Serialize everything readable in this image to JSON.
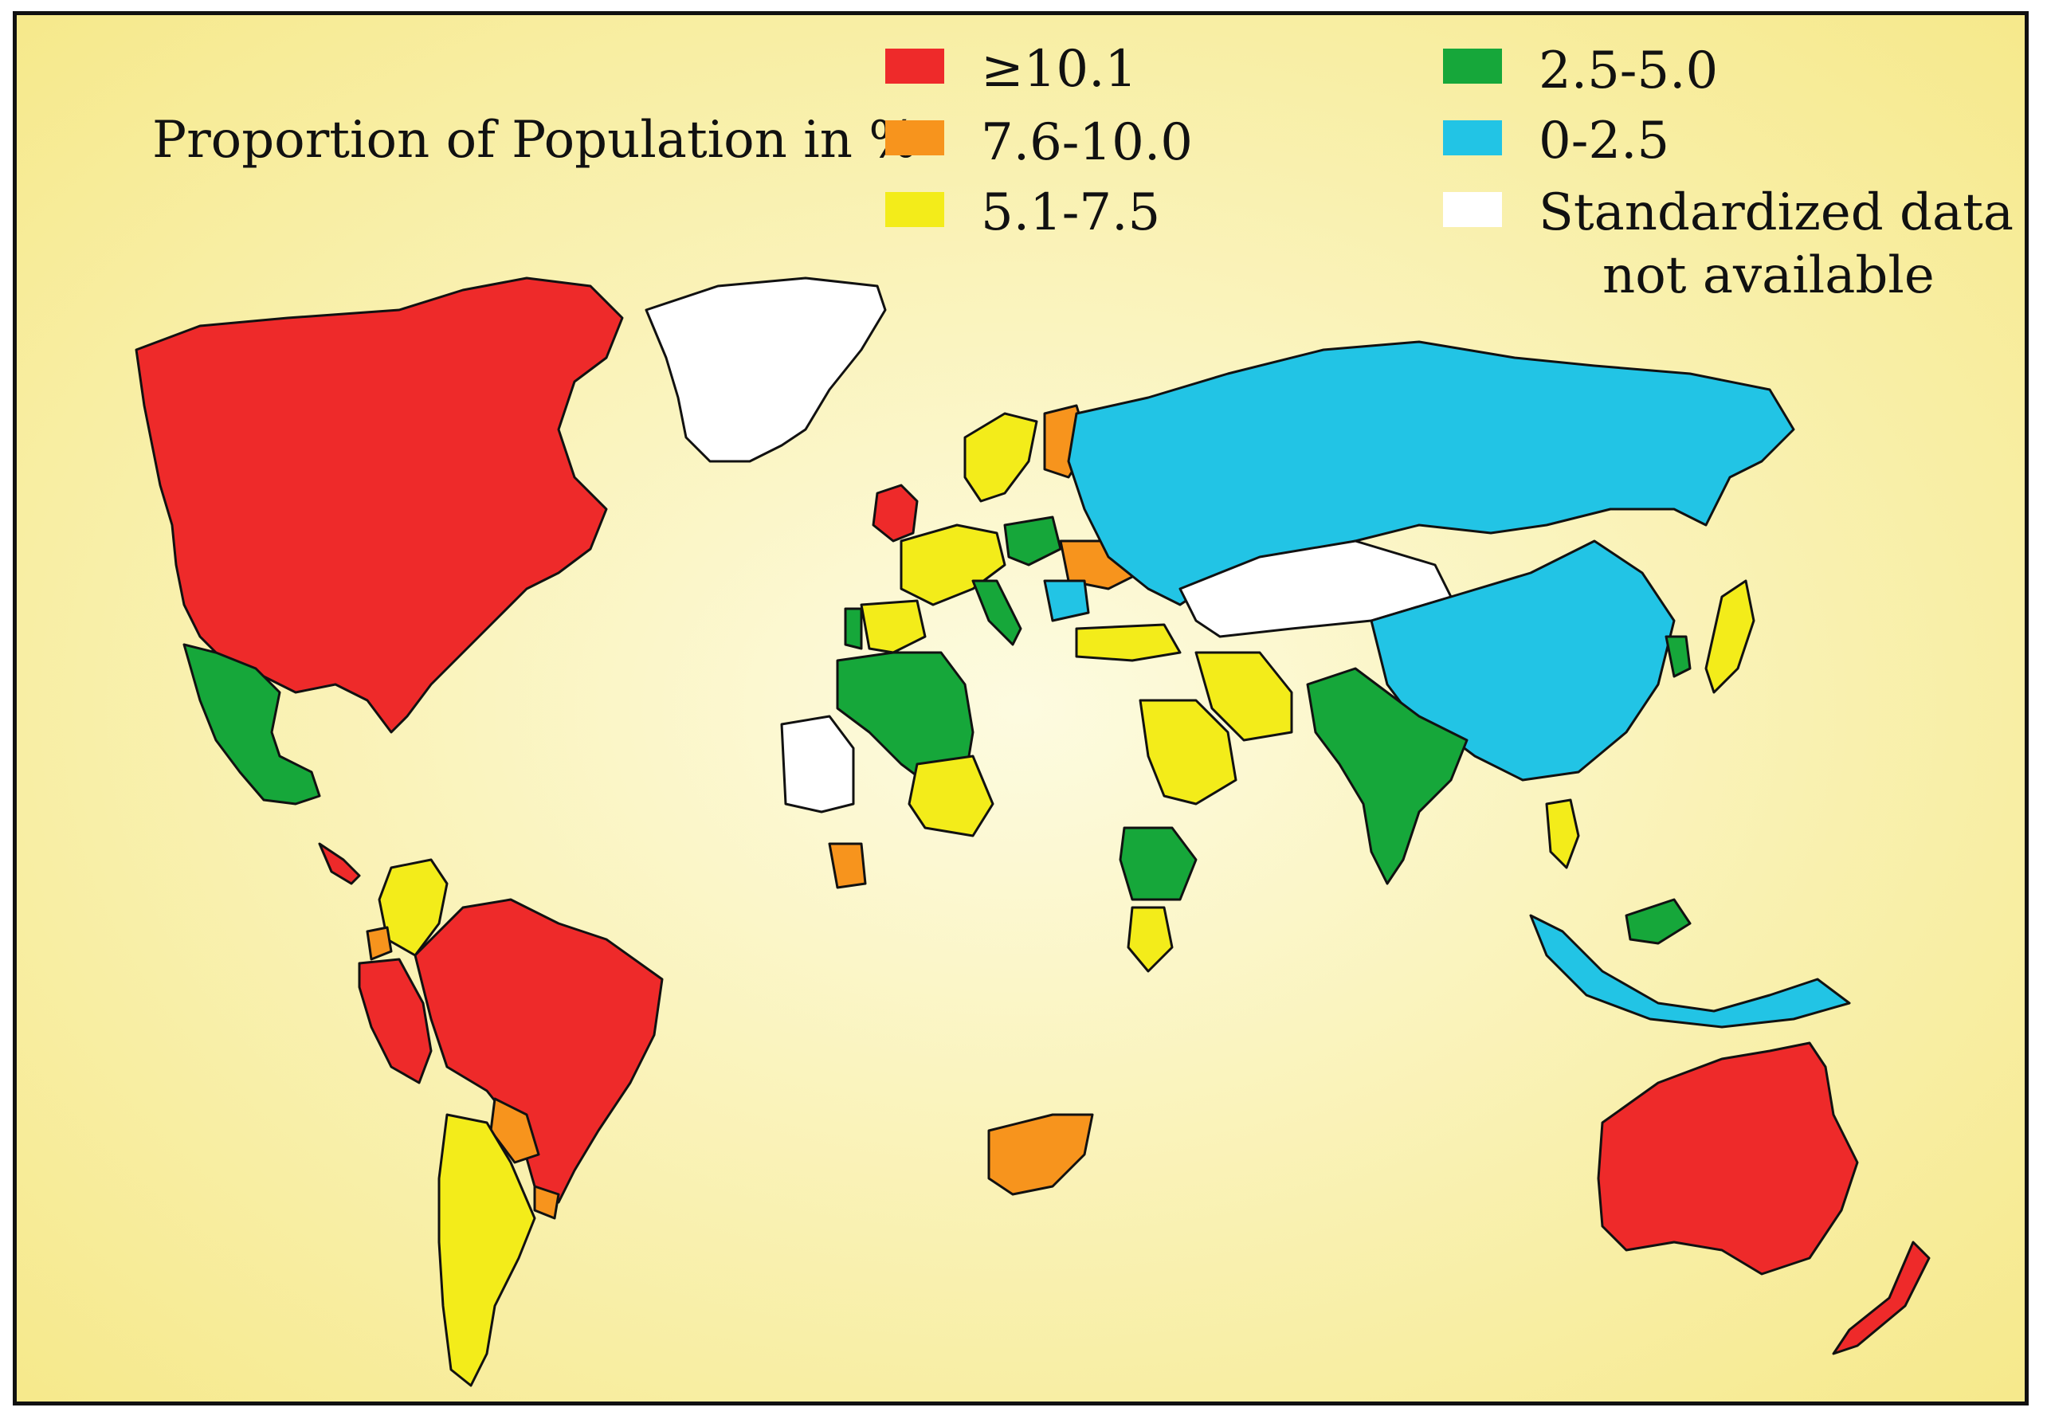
{
  "map": {
    "title": "Proportion of Population in %",
    "legend": [
      {
        "key": "gte10",
        "label": "≥10.1",
        "color": "#ee2a2a"
      },
      {
        "key": "7to10",
        "label": "7.6-10.0",
        "color": "#f7941d"
      },
      {
        "key": "5to7",
        "label": "5.1-7.5",
        "color": "#f3ec1a"
      },
      {
        "key": "2to5",
        "label": "2.5-5.0",
        "color": "#16a73a"
      },
      {
        "key": "0to2",
        "label": "0-2.5",
        "color": "#22c4e5"
      },
      {
        "key": "na",
        "label": "Standardized data",
        "label_line2": "not available",
        "color": "#ffffff"
      }
    ],
    "background_gradient": [
      "#fdfbe0",
      "#f6e98c"
    ],
    "land_default_color": "#fbf6c8",
    "categories": {
      "north_america": "≥10.1",
      "mexico": "2.5-5.0",
      "central_america": "≥10.1",
      "colombia_venezuela": "5.1-7.5",
      "ecuador": "7.6-10.0",
      "peru": "≥10.1",
      "brazil": "≥10.1",
      "paraguay": "7.6-10.0",
      "uruguay": "7.6-10.0",
      "argentina_chile": "5.1-7.5",
      "greenland": "Standardized data not available",
      "russia": "0-2.5",
      "china": "0-2.5",
      "mongolia_kazakhstan": "Standardized data not available",
      "uk_ireland": "≥10.1",
      "scandinavia": "5.1-7.5",
      "finland": "7.6-10.0",
      "france_germany": "5.1-7.5",
      "spain": "5.1-7.5",
      "portugal": "2.5-5.0",
      "poland": "2.5-5.0",
      "italy": "2.5-5.0",
      "ukraine": "7.6-10.0",
      "romania_bulgaria": "0-2.5",
      "turkey": "5.1-7.5",
      "iran": "5.1-7.5",
      "saudi_arabia": "5.1-7.5",
      "pakistan_india": "2.5-5.0",
      "morocco_algeria": "2.5-5.0",
      "mauritania_mali": "Standardized data not available",
      "niger": "5.1-7.5",
      "ivory_coast": "7.6-10.0",
      "ethiopia": "2.5-5.0",
      "kenya": "5.1-7.5",
      "south_africa": "7.6-10.0",
      "japan": "5.1-7.5",
      "korea": "2.5-5.0",
      "thailand_philippines": "5.1-7.5",
      "indonesia": "0-2.5",
      "malaysia": "2.5-5.0",
      "australia": "≥10.1",
      "new_zealand": "≥10.1"
    }
  }
}
